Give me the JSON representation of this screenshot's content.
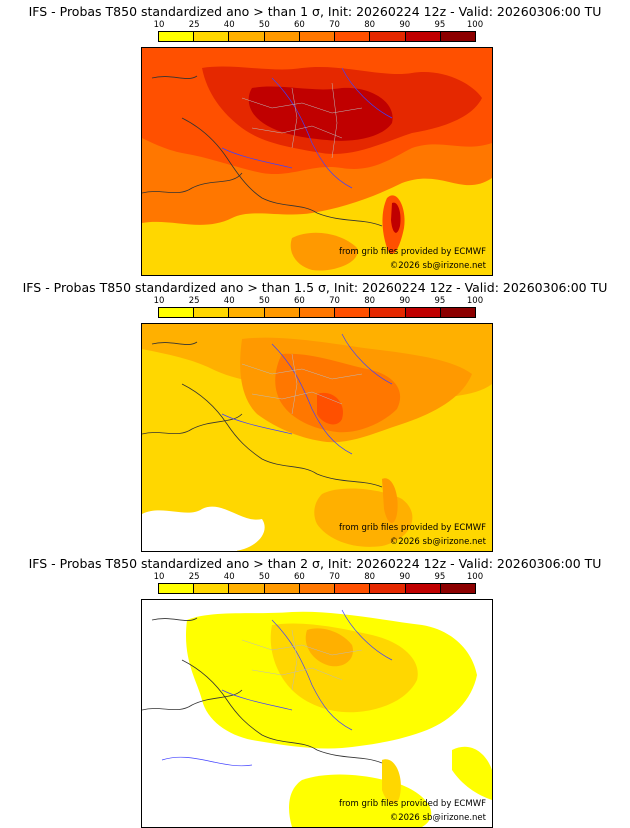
{
  "panels": [
    {
      "title": "IFS - Probas T850  standardized ano > than 1 σ, Init: 20260224 12z - Valid: 20260306:00 TU",
      "sigma": "1"
    },
    {
      "title": "IFS - Probas T850  standardized ano > than 1.5 σ, Init: 20260224 12z - Valid: 20260306:00 TU",
      "sigma": "1.5"
    },
    {
      "title": "IFS - Probas T850  standardized ano > than 2 σ, Init: 20260224 12z - Valid: 20260306:00 TU",
      "sigma": "2"
    }
  ],
  "colorbar": {
    "labels": [
      "10",
      "25",
      "40",
      "50",
      "60",
      "70",
      "80",
      "90",
      "95",
      "100"
    ],
    "colors": [
      "#ffff00",
      "#ffd700",
      "#ffb000",
      "#ff9900",
      "#ff7700",
      "#ff5000",
      "#e52800",
      "#c00000",
      "#8c0000"
    ]
  },
  "credits": {
    "source": "from grib files provided by ECMWF",
    "copyright": "©2026 sb@irizone.net"
  }
}
